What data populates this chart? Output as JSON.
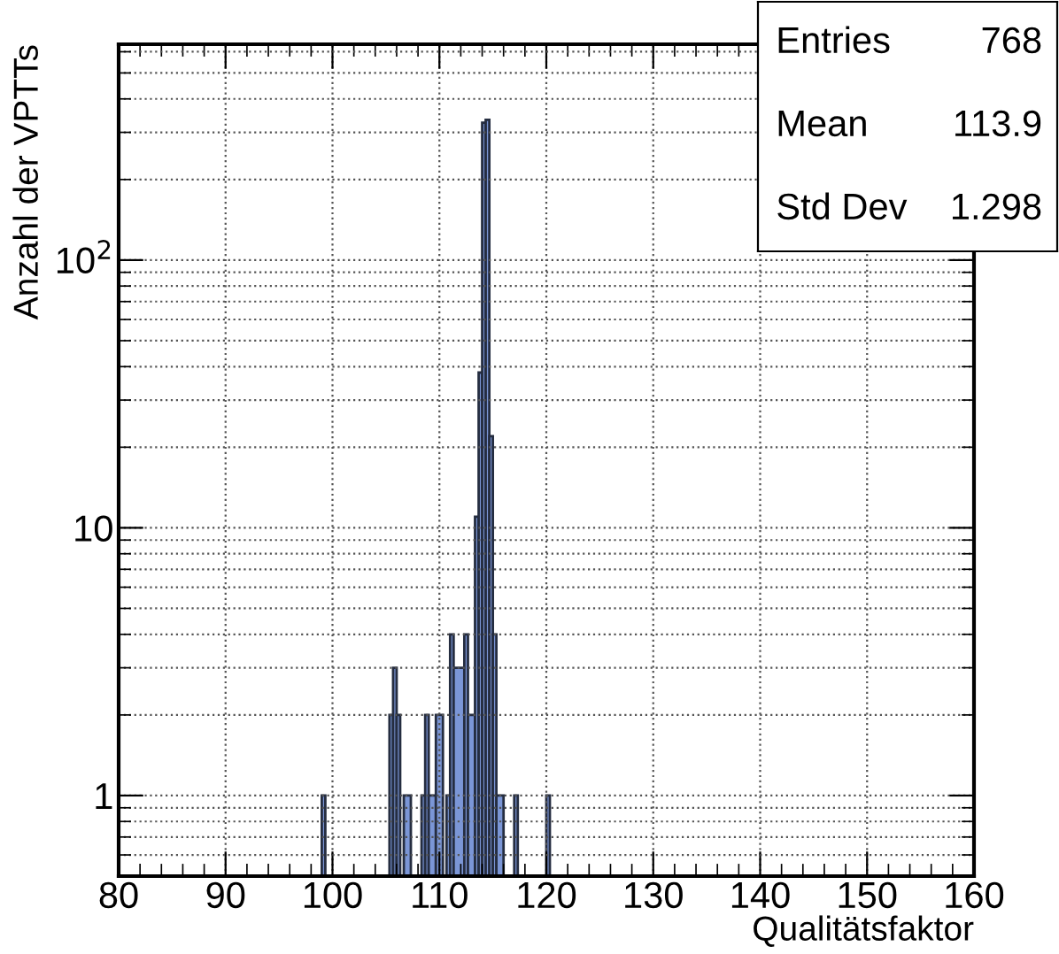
{
  "chart_data": {
    "type": "histogram",
    "xlabel": "Qualitätsfaktor",
    "ylabel": "Anzahl der VPTTs",
    "bins": [
      99,
      99.33,
      105.33,
      105.67,
      106,
      106.33,
      106.67,
      107.33,
      108.33,
      108.67,
      109,
      109.67,
      110.33,
      110.67,
      111,
      111.33,
      112.33,
      112.67,
      113.33,
      113.67,
      114,
      114.33,
      114.67,
      115,
      115.33,
      116,
      117,
      117.33,
      120,
      120.33
    ],
    "values": [
      1,
      null,
      2,
      3,
      2,
      null,
      1,
      null,
      1,
      2,
      1,
      2,
      null,
      1,
      4,
      3,
      4,
      2,
      11,
      38,
      326,
      334,
      22,
      4,
      1,
      null,
      1,
      null,
      1
    ],
    "color": "#7b96d6",
    "log": "y",
    "grid": true,
    "xlim": [
      80,
      160
    ],
    "xticks": [
      80,
      90,
      100,
      110,
      120,
      130,
      140,
      150,
      160
    ],
    "ylim": [
      0.5,
      640
    ],
    "yticks": [
      1,
      10,
      {
        "value": 100,
        "label": "10$^{2}$"
      }
    ],
    "annotations": [
      "Entries",
      "768",
      "Mean",
      "113.9",
      "Std Dev",
      "1.298"
    ]
  }
}
